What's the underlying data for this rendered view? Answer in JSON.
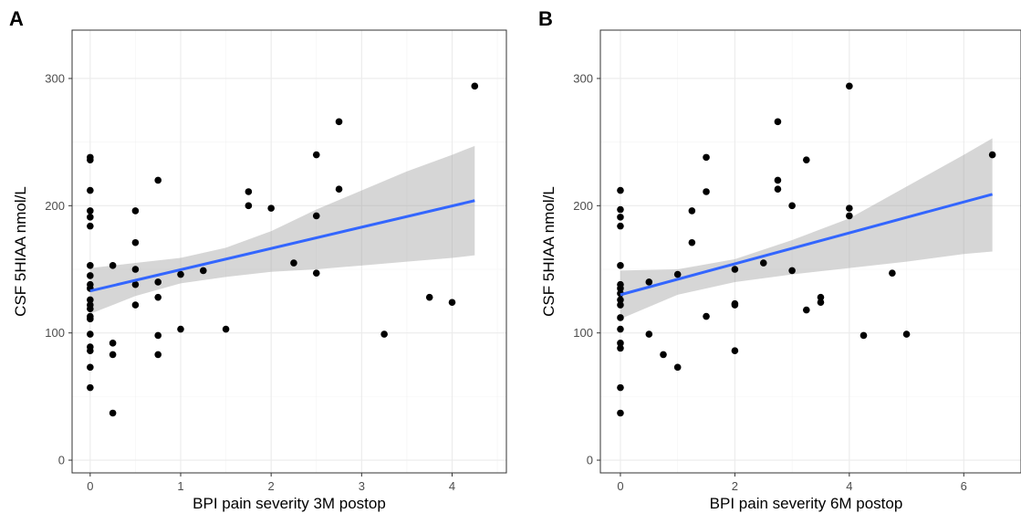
{
  "chart_data": [
    {
      "type": "scatter",
      "panel_label": "A",
      "title": "",
      "xlabel": "BPI pain severity 3M postop",
      "ylabel": "CSF 5HIAA nmol/L",
      "xlim": [
        -0.2,
        4.6
      ],
      "ylim": [
        -10,
        338
      ],
      "x_ticks": [
        0,
        1,
        2,
        3,
        4
      ],
      "y_ticks": [
        0,
        100,
        200,
        300
      ],
      "grid": true,
      "points": [
        [
          0,
          238
        ],
        [
          0,
          236
        ],
        [
          0,
          212
        ],
        [
          0,
          196
        ],
        [
          0,
          191
        ],
        [
          0,
          184
        ],
        [
          0,
          153
        ],
        [
          0,
          145
        ],
        [
          0,
          138
        ],
        [
          0,
          135
        ],
        [
          0,
          126
        ],
        [
          0,
          122
        ],
        [
          0,
          119
        ],
        [
          0,
          113
        ],
        [
          0,
          111
        ],
        [
          0,
          99
        ],
        [
          0,
          89
        ],
        [
          0,
          86
        ],
        [
          0,
          73
        ],
        [
          0,
          57
        ],
        [
          0.25,
          153
        ],
        [
          0.25,
          92
        ],
        [
          0.25,
          83
        ],
        [
          0.25,
          37
        ],
        [
          0.5,
          196
        ],
        [
          0.5,
          171
        ],
        [
          0.5,
          150
        ],
        [
          0.5,
          138
        ],
        [
          0.5,
          122
        ],
        [
          0.75,
          220
        ],
        [
          0.75,
          140
        ],
        [
          0.75,
          128
        ],
        [
          0.75,
          98
        ],
        [
          0.75,
          83
        ],
        [
          1,
          146
        ],
        [
          1,
          103
        ],
        [
          1.25,
          149
        ],
        [
          1.5,
          103
        ],
        [
          1.75,
          211
        ],
        [
          1.75,
          200
        ],
        [
          2,
          198
        ],
        [
          2.25,
          155
        ],
        [
          2.5,
          240
        ],
        [
          2.5,
          192
        ],
        [
          2.5,
          147
        ],
        [
          2.75,
          266
        ],
        [
          2.75,
          213
        ],
        [
          3.25,
          99
        ],
        [
          3.75,
          128
        ],
        [
          4,
          124
        ],
        [
          4.25,
          294
        ]
      ],
      "fit": {
        "x": [
          0,
          4.25
        ],
        "y": [
          133,
          204
        ]
      },
      "ci_band": {
        "x": [
          0,
          0.5,
          1,
          1.5,
          2,
          2.5,
          3,
          3.5,
          4,
          4.25
        ],
        "lower": [
          115,
          129,
          139,
          144,
          148,
          150,
          153,
          156,
          159,
          161
        ],
        "upper": [
          151,
          155,
          159,
          167,
          180,
          197,
          212,
          227,
          240,
          247
        ]
      },
      "colors": {
        "points": "#000000",
        "fit": "#3366ff",
        "band": "#999999"
      }
    },
    {
      "type": "scatter",
      "panel_label": "B",
      "title": "",
      "xlabel": "BPI pain severity 6M postop",
      "ylabel": "CSF 5HIAA nmol/L",
      "xlim": [
        -0.35,
        7.0
      ],
      "ylim": [
        -10,
        338
      ],
      "x_ticks": [
        0,
        2,
        4,
        6
      ],
      "y_ticks": [
        0,
        100,
        200,
        300
      ],
      "grid": true,
      "points": [
        [
          0,
          212
        ],
        [
          0,
          197
        ],
        [
          0,
          191
        ],
        [
          0,
          184
        ],
        [
          0,
          153
        ],
        [
          0,
          138
        ],
        [
          0,
          135
        ],
        [
          0,
          131
        ],
        [
          0,
          126
        ],
        [
          0,
          122
        ],
        [
          0,
          112
        ],
        [
          0,
          103
        ],
        [
          0,
          92
        ],
        [
          0,
          88
        ],
        [
          0,
          57
        ],
        [
          0,
          37
        ],
        [
          0.5,
          140
        ],
        [
          0.5,
          99
        ],
        [
          0.75,
          83
        ],
        [
          1,
          146
        ],
        [
          1,
          73
        ],
        [
          1.25,
          196
        ],
        [
          1.25,
          171
        ],
        [
          1.5,
          238
        ],
        [
          1.5,
          211
        ],
        [
          1.5,
          113
        ],
        [
          2,
          150
        ],
        [
          2,
          123
        ],
        [
          2,
          122
        ],
        [
          2,
          86
        ],
        [
          2.5,
          155
        ],
        [
          2.75,
          266
        ],
        [
          2.75,
          220
        ],
        [
          2.75,
          213
        ],
        [
          3,
          200
        ],
        [
          3,
          149
        ],
        [
          3.25,
          236
        ],
        [
          3.25,
          118
        ],
        [
          3.5,
          128
        ],
        [
          3.5,
          124
        ],
        [
          4,
          294
        ],
        [
          4,
          198
        ],
        [
          4,
          192
        ],
        [
          4.25,
          98
        ],
        [
          4.75,
          147
        ],
        [
          5,
          99
        ],
        [
          6.5,
          240
        ]
      ],
      "fit": {
        "x": [
          0,
          6.5
        ],
        "y": [
          130,
          209
        ]
      },
      "ci_band": {
        "x": [
          0,
          1,
          2,
          3,
          4,
          5,
          6,
          6.5
        ],
        "lower": [
          111,
          130,
          140,
          146,
          151,
          156,
          162,
          164
        ],
        "upper": [
          149,
          150,
          158,
          173,
          190,
          215,
          240,
          253
        ]
      },
      "colors": {
        "points": "#000000",
        "fit": "#3366ff",
        "band": "#999999"
      }
    }
  ]
}
